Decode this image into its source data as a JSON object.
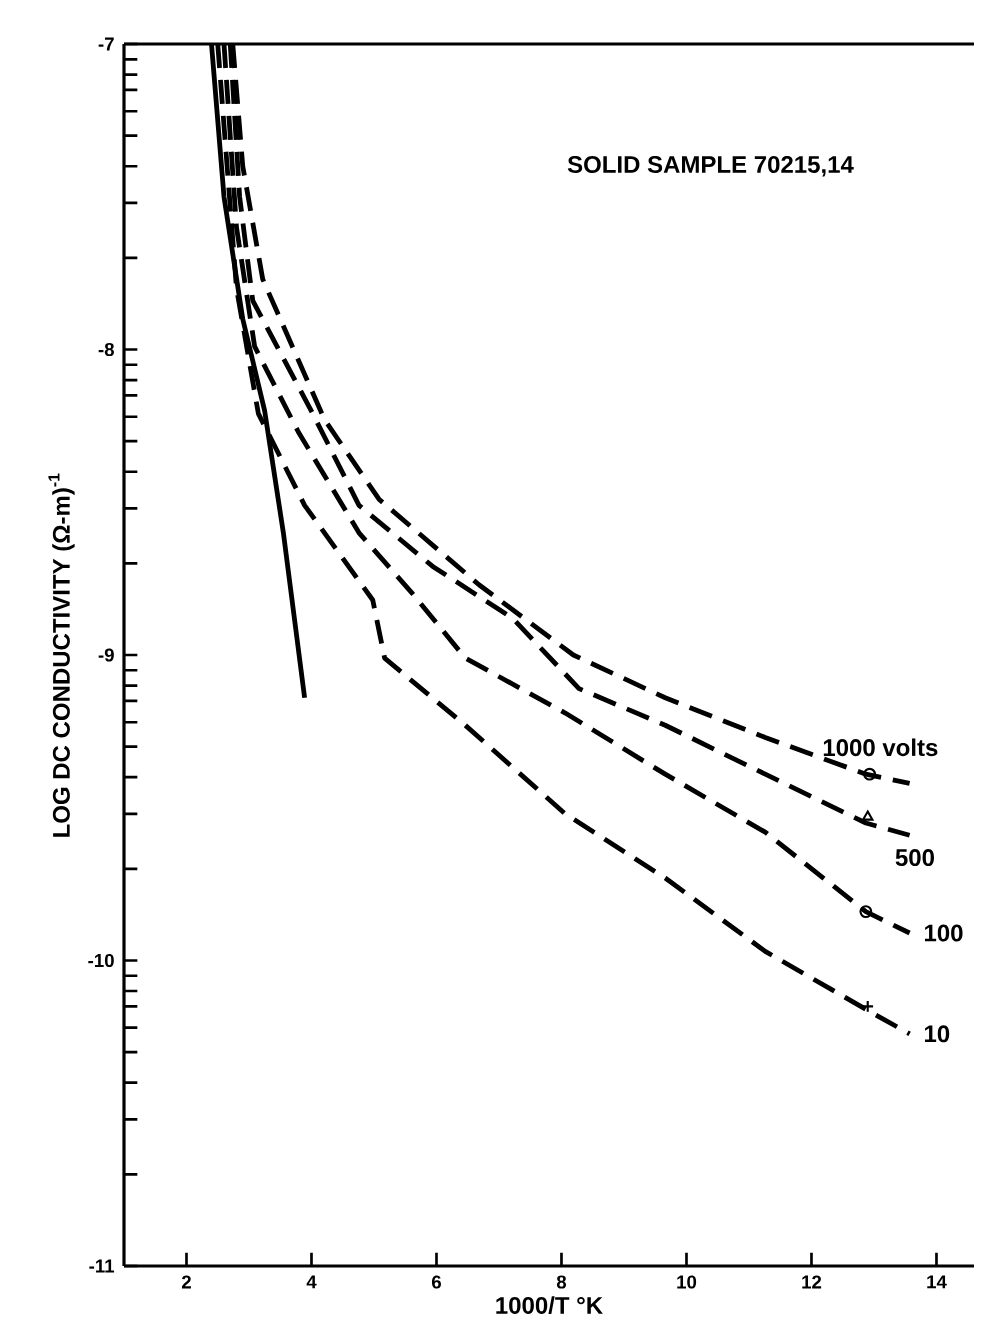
{
  "chart_data": {
    "type": "line",
    "xlabel": "1000/T °K",
    "ylabel": "LOG DC CONDUCTIVITY (Ω-m)$^{-1}$",
    "annotations": [
      "SOLID SAMPLE 70215,14"
    ],
    "xlim": [
      1,
      14.6
    ],
    "ylim": [
      -11,
      -7
    ],
    "xticks": [
      2,
      4,
      6,
      8,
      10,
      12,
      14
    ],
    "yticks": [
      -11,
      -10,
      -9,
      -8,
      -7,
      {
        "value": -10.7,
        "label": null
      },
      {
        "value": -10.52,
        "label": null
      },
      {
        "value": -10.4,
        "label": null
      },
      {
        "value": -10.3,
        "label": null
      },
      {
        "value": -10.22,
        "label": null
      },
      {
        "value": -10.15,
        "label": null
      },
      {
        "value": -10.1,
        "label": null
      },
      {
        "value": -10.05,
        "label": null
      },
      {
        "value": -9.7,
        "label": null
      },
      {
        "value": -9.52,
        "label": null
      },
      {
        "value": -9.4,
        "label": null
      },
      {
        "value": -9.3,
        "label": null
      },
      {
        "value": -9.22,
        "label": null
      },
      {
        "value": -9.15,
        "label": null
      },
      {
        "value": -9.1,
        "label": null
      },
      {
        "value": -9.05,
        "label": null
      },
      {
        "value": -8.7,
        "label": null
      },
      {
        "value": -8.52,
        "label": null
      },
      {
        "value": -8.4,
        "label": null
      },
      {
        "value": -8.3,
        "label": null
      },
      {
        "value": -8.22,
        "label": null
      },
      {
        "value": -8.15,
        "label": null
      },
      {
        "value": -8.1,
        "label": null
      },
      {
        "value": -8.05,
        "label": null
      },
      {
        "value": -7.7,
        "label": null
      },
      {
        "value": -7.52,
        "label": null
      },
      {
        "value": -7.4,
        "label": null
      },
      {
        "value": -7.3,
        "label": null
      },
      {
        "value": -7.22,
        "label": null
      },
      {
        "value": -7.15,
        "label": null
      },
      {
        "value": -7.1,
        "label": null
      },
      {
        "value": -7.05,
        "label": null
      }
    ],
    "line_style": "dashed",
    "marker": "none",
    "series": [
      {
        "name": "1000 volts",
        "color": "#000000",
        "x": [
          2.74,
          2.9,
          3.22,
          4.21,
          5.08,
          6.68,
          8.19,
          9.66,
          11.26,
          12.87,
          13.57
        ],
        "values": [
          -7.0,
          -7.4,
          -7.77,
          -8.23,
          -8.49,
          -8.77,
          -9.0,
          -9.14,
          -9.27,
          -9.39,
          -9.42
        ]
      },
      {
        "name": "500",
        "color": "#000000",
        "x": [
          2.7,
          2.85,
          3.06,
          4.02,
          4.76,
          5.94,
          7.22,
          8.28,
          9.66,
          11.26,
          12.87,
          13.57
        ],
        "values": [
          -7.0,
          -7.5,
          -7.84,
          -8.21,
          -8.51,
          -8.71,
          -8.88,
          -9.11,
          -9.23,
          -9.39,
          -9.55,
          -9.59
        ]
      },
      {
        "name": "100",
        "color": "#000000",
        "x": [
          2.6,
          2.8,
          3.09,
          3.79,
          4.76,
          5.62,
          6.46,
          8.06,
          9.66,
          11.26,
          12.87,
          13.57
        ],
        "values": [
          -7.0,
          -7.6,
          -7.99,
          -8.27,
          -8.6,
          -8.8,
          -9.01,
          -9.19,
          -9.39,
          -9.58,
          -9.84,
          -9.91
        ]
      },
      {
        "name": "10",
        "color": "#000000",
        "x": [
          2.5,
          2.8,
          3.15,
          3.89,
          4.98,
          5.17,
          6.46,
          8.06,
          9.66,
          11.26,
          12.87,
          13.57
        ],
        "values": [
          -7.0,
          -7.8,
          -8.21,
          -8.51,
          -8.82,
          -9.01,
          -9.23,
          -9.52,
          -9.73,
          -9.97,
          -10.16,
          -10.24
        ]
      },
      {
        "color": "#000000",
        "line_style": "solid",
        "x": [
          2.4,
          2.6,
          2.9,
          3.25,
          3.55,
          3.89
        ],
        "values": [
          -7.0,
          -7.5,
          -7.9,
          -8.2,
          -8.6,
          -9.14
        ]
      },
      {
        "type": "scatter",
        "color": "#000000",
        "marker": "circle",
        "x": [
          12.93
        ],
        "values": [
          -9.39
        ]
      },
      {
        "type": "scatter",
        "color": "#000000",
        "marker": "triangle",
        "x": [
          12.9
        ],
        "values": [
          -9.53
        ]
      },
      {
        "type": "scatter",
        "color": "#000000",
        "marker": "circle",
        "x": [
          12.87
        ],
        "values": [
          -9.84
        ]
      },
      {
        "type": "scatter",
        "color": "#000000",
        "marker": "cross",
        "x": [
          12.9
        ],
        "values": [
          -10.15
        ]
      }
    ]
  }
}
